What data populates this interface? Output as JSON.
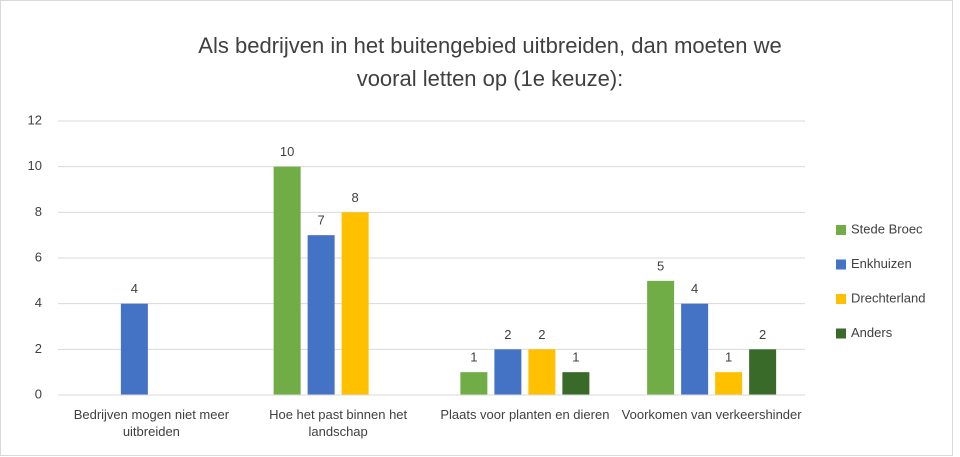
{
  "chart_data": {
    "type": "bar",
    "title": [
      "Als bedrijven in het buitengebied uitbreiden, dan moeten we",
      "vooral letten op (1e keuze):"
    ],
    "categories": [
      "Bedrijven mogen niet meer uitbreiden",
      "Hoe het past binnen het landschap",
      "Plaats voor planten en dieren",
      "Voorkomen van verkeershinder"
    ],
    "series": [
      {
        "name": "Stede Broec",
        "color": "#70ad47",
        "values": [
          null,
          10,
          1,
          5
        ]
      },
      {
        "name": "Enkhuizen",
        "color": "#4472c4",
        "values": [
          4,
          7,
          2,
          4
        ]
      },
      {
        "name": "Drechterland",
        "color": "#ffc000",
        "values": [
          null,
          8,
          2,
          1
        ]
      },
      {
        "name": "Anders",
        "color": "#3a6a2a",
        "values": [
          null,
          null,
          1,
          2
        ]
      }
    ],
    "ylim": [
      0,
      12
    ],
    "yticks": [
      0,
      2,
      4,
      6,
      8,
      10,
      12
    ],
    "grid": true,
    "legend": "right"
  }
}
